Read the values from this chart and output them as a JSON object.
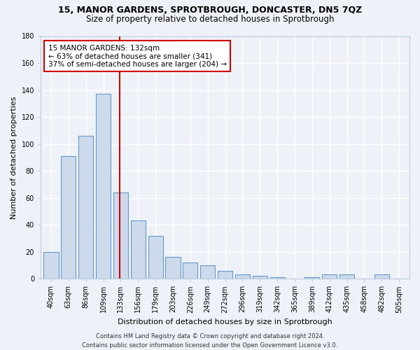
{
  "title1": "15, MANOR GARDENS, SPROTBROUGH, DONCASTER, DN5 7QZ",
  "title2": "Size of property relative to detached houses in Sprotbrough",
  "xlabel": "Distribution of detached houses by size in Sprotbrough",
  "ylabel": "Number of detached properties",
  "categories": [
    "40sqm",
    "63sqm",
    "86sqm",
    "109sqm",
    "133sqm",
    "156sqm",
    "179sqm",
    "203sqm",
    "226sqm",
    "249sqm",
    "272sqm",
    "296sqm",
    "319sqm",
    "342sqm",
    "365sqm",
    "389sqm",
    "412sqm",
    "435sqm",
    "458sqm",
    "482sqm",
    "505sqm"
  ],
  "hist_heights": [
    20,
    91,
    106,
    137,
    64,
    43,
    32,
    16,
    12,
    10,
    6,
    3,
    2,
    1,
    0,
    1,
    3,
    3,
    0,
    3,
    0
  ],
  "bar_color": "#ccdaec",
  "bar_edge_color": "#6699cc",
  "vline_x_idx": 4,
  "vline_color": "#cc0000",
  "annotation_line1": "15 MANOR GARDENS: 132sqm",
  "annotation_line2": "← 63% of detached houses are smaller (341)",
  "annotation_line3": "37% of semi-detached houses are larger (204) →",
  "annotation_box_color": "white",
  "annotation_box_edge": "#cc0000",
  "ylim": [
    0,
    180
  ],
  "yticks": [
    0,
    20,
    40,
    60,
    80,
    100,
    120,
    140,
    160,
    180
  ],
  "footer": "Contains HM Land Registry data © Crown copyright and database right 2024.\nContains public sector information licensed under the Open Government Licence v3.0.",
  "bg_color": "#eef2f8",
  "grid_color": "#ffffff",
  "title1_fontsize": 9,
  "title2_fontsize": 8.5,
  "ylabel_fontsize": 8,
  "xlabel_fontsize": 8,
  "tick_fontsize": 7,
  "footer_fontsize": 6,
  "annotation_fontsize": 7.5
}
